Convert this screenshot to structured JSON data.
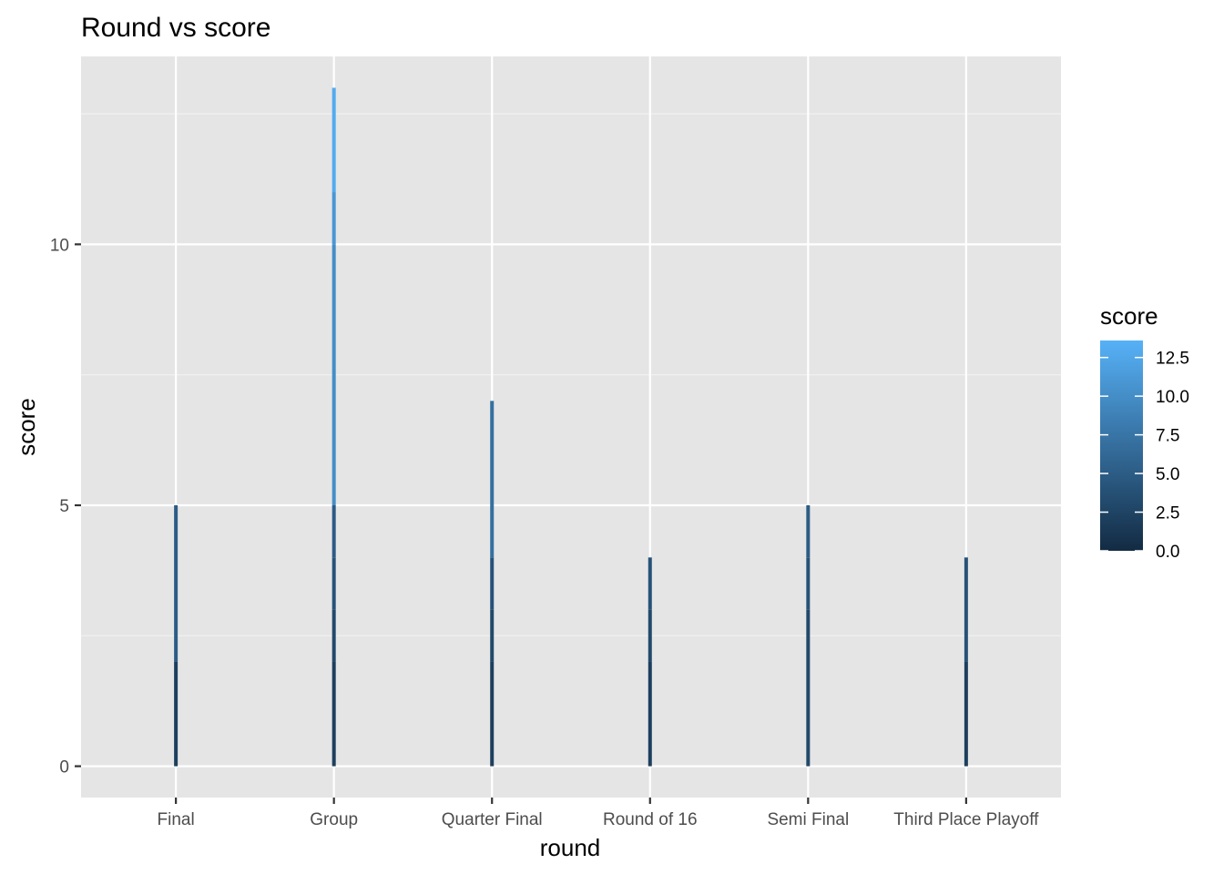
{
  "chart_data": {
    "type": "bar",
    "title": "Round vs score",
    "xlabel": "round",
    "ylabel": "score",
    "categories": [
      "Final",
      "Group",
      "Quarter Final",
      "Round of 16",
      "Semi Final",
      "Third Place Playoff"
    ],
    "values": [
      5,
      13,
      7,
      4,
      5,
      4
    ],
    "segments": [
      [
        0,
        2,
        5
      ],
      [
        0,
        2,
        3,
        4,
        5,
        10,
        11,
        13
      ],
      [
        0,
        2,
        3,
        4,
        7
      ],
      [
        0,
        2,
        3,
        4
      ],
      [
        0,
        3,
        4,
        5
      ],
      [
        0,
        2,
        4
      ]
    ],
    "ylim": [
      -0.6,
      13.6
    ],
    "y_ticks": [
      0,
      5,
      10
    ],
    "y_tick_labels": [
      "0",
      "5",
      "10"
    ],
    "grid": true,
    "panel_background": "#E5E5E5",
    "grid_color": "#FFFFFF",
    "legend": {
      "title": "score",
      "position": "right",
      "colors": {
        "low": "#132B43",
        "high": "#56B1F7"
      },
      "range": [
        0,
        13.6
      ],
      "ticks": [
        0,
        2.5,
        5,
        7.5,
        10,
        12.5
      ],
      "tick_labels": [
        "0.0",
        "2.5",
        "5.0",
        "7.5",
        "10.0",
        "12.5"
      ]
    }
  }
}
